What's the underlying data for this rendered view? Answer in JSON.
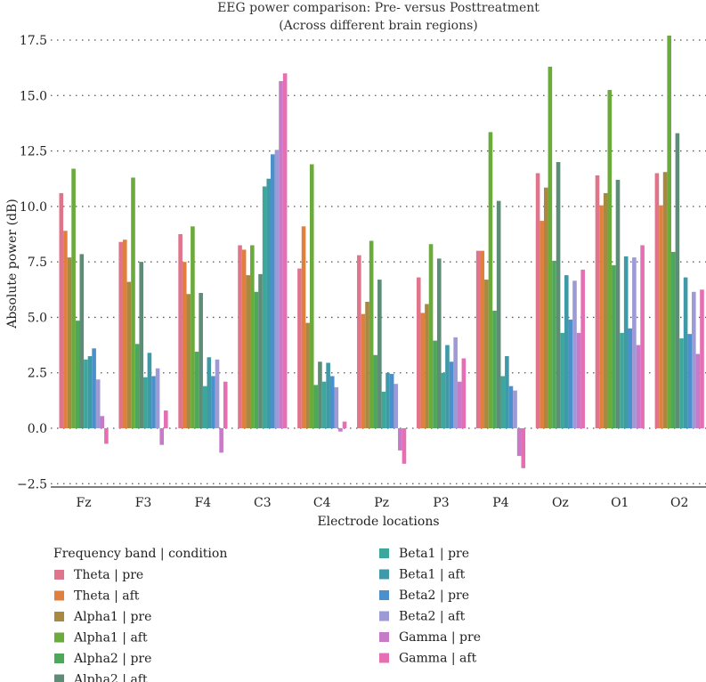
{
  "chart_data": {
    "type": "bar",
    "title": "EEG power comparison: Pre- versus Posttreatment",
    "subtitle": "(Across different brain regions)",
    "xlabel": "Electrode locations",
    "ylabel": "Absolute power (dB)",
    "ylim": [
      -2.6,
      17.8
    ],
    "yticks": [
      "17.5",
      "15.0",
      "12.5",
      "10.0",
      "7.5",
      "5.0",
      "2.5",
      "0.0",
      "−2.5"
    ],
    "ytick_values": [
      17.5,
      15.0,
      12.5,
      10.0,
      7.5,
      5.0,
      2.5,
      0.0,
      -2.5
    ],
    "grid": "horizontal dotted",
    "legend_title": "Frequency band | condition",
    "legend_position": "bottom-left, two columns",
    "categories": [
      "Fz",
      "F3",
      "F4",
      "C3",
      "C4",
      "Pz",
      "P3",
      "P4",
      "Oz",
      "O1",
      "O2"
    ],
    "series": [
      {
        "name": "Theta | pre",
        "color": "#e0748b",
        "values": [
          10.6,
          8.4,
          8.75,
          8.25,
          7.2,
          7.8,
          6.8,
          8.0,
          11.5,
          11.4,
          11.5
        ]
      },
      {
        "name": "Theta | aft",
        "color": "#e07f3e",
        "values": [
          8.9,
          8.5,
          7.5,
          8.05,
          9.1,
          5.15,
          5.2,
          8.0,
          9.35,
          10.05,
          10.05
        ]
      },
      {
        "name": "Alpha1 | pre",
        "color": "#a8893f",
        "values": [
          7.7,
          6.6,
          6.05,
          6.9,
          4.75,
          5.7,
          5.6,
          6.7,
          10.85,
          10.6,
          11.55
        ]
      },
      {
        "name": "Alpha1 | aft",
        "color": "#6aab3c",
        "values": [
          11.7,
          11.3,
          9.1,
          8.25,
          11.9,
          8.45,
          8.3,
          13.35,
          16.3,
          15.25,
          17.7
        ]
      },
      {
        "name": "Alpha2 | pre",
        "color": "#4ea85a",
        "values": [
          4.85,
          3.8,
          3.45,
          6.15,
          1.95,
          3.3,
          3.95,
          5.3,
          7.55,
          7.35,
          7.95
        ]
      },
      {
        "name": "Alpha2 | aft",
        "color": "#5d8c77",
        "values": [
          7.85,
          7.5,
          6.1,
          6.95,
          3.0,
          6.7,
          7.65,
          10.25,
          12.0,
          11.2,
          13.3
        ]
      },
      {
        "name": "Beta1 | pre",
        "color": "#3ea79c",
        "values": [
          3.1,
          2.3,
          1.9,
          10.9,
          2.1,
          1.65,
          2.5,
          2.35,
          4.3,
          4.3,
          4.05
        ]
      },
      {
        "name": "Beta1 | aft",
        "color": "#3f9aa8",
        "values": [
          3.25,
          3.4,
          3.2,
          11.25,
          2.95,
          2.5,
          3.75,
          3.25,
          6.9,
          7.75,
          6.8
        ]
      },
      {
        "name": "Beta2 | pre",
        "color": "#4a90cc",
        "values": [
          3.6,
          2.35,
          2.35,
          12.35,
          2.35,
          2.45,
          3.0,
          1.9,
          4.9,
          4.5,
          4.25
        ]
      },
      {
        "name": "Beta2 | aft",
        "color": "#9d9ad6",
        "values": [
          2.2,
          2.7,
          3.1,
          12.55,
          1.85,
          2.0,
          4.1,
          1.7,
          6.65,
          7.7,
          6.15
        ]
      },
      {
        "name": "Gamma | pre",
        "color": "#c77ac8",
        "values": [
          0.55,
          -0.75,
          -1.1,
          15.65,
          -0.15,
          -1.0,
          2.1,
          -1.25,
          4.3,
          3.75,
          3.35
        ]
      },
      {
        "name": "Gamma | aft",
        "color": "#e66fb3",
        "values": [
          -0.7,
          0.8,
          2.1,
          16.0,
          0.3,
          -1.6,
          3.15,
          -1.8,
          7.15,
          8.25,
          6.25
        ]
      }
    ]
  }
}
